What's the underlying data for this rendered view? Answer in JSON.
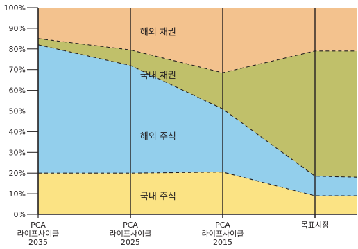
{
  "chart_data": {
    "type": "area",
    "stacked": true,
    "categories": [
      [
        "PCA",
        "라이프사이클",
        "2035"
      ],
      [
        "PCA",
        "라이프사이클",
        "2025"
      ],
      [
        "PCA",
        "라이프사이클",
        "2015"
      ],
      [
        "목표시점"
      ]
    ],
    "x_positions": [
      0,
      1,
      2,
      3,
      3.5
    ],
    "boundaries": {
      "domestic_stock_top": [
        20,
        20,
        20.5,
        9,
        9
      ],
      "foreign_stock_top": [
        82,
        72,
        51,
        18.5,
        18
      ],
      "domestic_bond_top": [
        85,
        79.5,
        68.5,
        79,
        79
      ],
      "foreign_bond_top": [
        100,
        100,
        100,
        100,
        100
      ]
    },
    "series": [
      {
        "name": "국내 주식",
        "color": "#fbe384"
      },
      {
        "name": "해외 주식",
        "color": "#93cfec"
      },
      {
        "name": "국내 채권",
        "color": "#c0c06a"
      },
      {
        "name": "해외 채권",
        "color": "#f3c28e"
      }
    ],
    "y_ticks": [
      "0%",
      "10%",
      "20%",
      "30%",
      "40%",
      "50%",
      "60%",
      "70%",
      "80%",
      "90%",
      "100%"
    ],
    "ylim": [
      0,
      100
    ],
    "label_positions": [
      {
        "x": 1.3,
        "y": 9
      },
      {
        "x": 1.3,
        "y": 38
      },
      {
        "x": 1.3,
        "y": 67.5
      },
      {
        "x": 1.3,
        "y": 88.5
      }
    ]
  }
}
